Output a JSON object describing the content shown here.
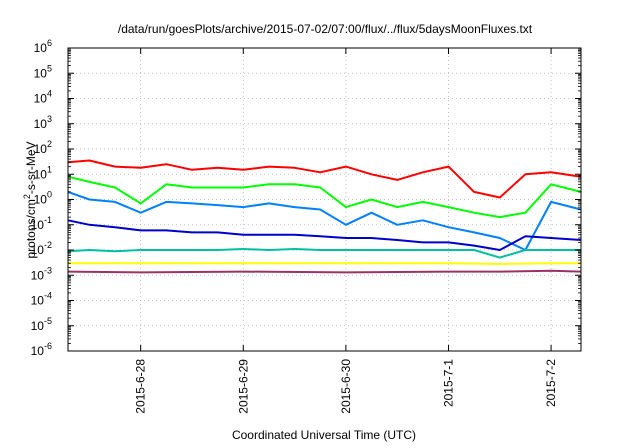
{
  "chart_data": {
    "type": "line",
    "title": "/data/run/goesPlots/archive/2015-07-02/07:00/flux/../flux/5daysMoonFluxes.txt",
    "xlabel": "Coordinated Universal Time (UTC)",
    "ylabel": "protons/cm²-s-sr-MeV",
    "ylabel_parts": {
      "a": "protons/cm",
      "sup": "2",
      "b": "-s-sr-MeV"
    },
    "y_scale": "log",
    "ylim": [
      1e-06,
      1000000
    ],
    "y_tick_exponents": [
      "-6",
      "-5",
      "-4",
      "-3",
      "-2",
      "-1",
      "0",
      "1",
      "2",
      "3",
      "4",
      "5",
      "6"
    ],
    "y_tick_base": "10",
    "xlim": [
      "2015-06-27 07:00",
      "2015-07-02 07:00"
    ],
    "x_ticks": [
      "2015-6-28",
      "2015-6-29",
      "2015-6-30",
      "2015-7-1",
      "2015-7-2"
    ],
    "grid": true,
    "series": [
      {
        "color": "#ff0000",
        "x": [
          "2015-06-27 07:00",
          "2015-06-27 12:00",
          "2015-06-27 18:00",
          "2015-06-28 00:00",
          "2015-06-28 06:00",
          "2015-06-28 12:00",
          "2015-06-28 18:00",
          "2015-06-29 00:00",
          "2015-06-29 06:00",
          "2015-06-29 12:00",
          "2015-06-29 18:00",
          "2015-06-30 00:00",
          "2015-06-30 06:00",
          "2015-06-30 12:00",
          "2015-06-30 18:00",
          "2015-07-01 00:00",
          "2015-07-01 06:00",
          "2015-07-01 12:00",
          "2015-07-01 18:00",
          "2015-07-02 00:00",
          "2015-07-02 07:00"
        ],
        "y": [
          30,
          35,
          20,
          18,
          25,
          15,
          18,
          15,
          20,
          18,
          12,
          20,
          10,
          6,
          12,
          20,
          2,
          1.2,
          10,
          12,
          8
        ]
      },
      {
        "color": "#00ff00",
        "x": [
          "2015-06-27 07:00",
          "2015-06-27 12:00",
          "2015-06-27 18:00",
          "2015-06-28 00:00",
          "2015-06-28 06:00",
          "2015-06-28 12:00",
          "2015-06-28 18:00",
          "2015-06-29 00:00",
          "2015-06-29 06:00",
          "2015-06-29 12:00",
          "2015-06-29 18:00",
          "2015-06-30 00:00",
          "2015-06-30 06:00",
          "2015-06-30 12:00",
          "2015-06-30 18:00",
          "2015-07-01 00:00",
          "2015-07-01 06:00",
          "2015-07-01 12:00",
          "2015-07-01 18:00",
          "2015-07-02 00:00",
          "2015-07-02 07:00"
        ],
        "y": [
          8,
          5,
          3,
          0.7,
          4,
          3,
          3,
          3,
          4,
          4,
          3,
          0.5,
          1,
          0.5,
          0.8,
          0.5,
          0.3,
          0.2,
          0.3,
          4,
          2
        ]
      },
      {
        "color": "#0080ff",
        "x": [
          "2015-06-27 07:00",
          "2015-06-27 12:00",
          "2015-06-27 18:00",
          "2015-06-28 00:00",
          "2015-06-28 06:00",
          "2015-06-28 12:00",
          "2015-06-28 18:00",
          "2015-06-29 00:00",
          "2015-06-29 06:00",
          "2015-06-29 12:00",
          "2015-06-29 18:00",
          "2015-06-30 00:00",
          "2015-06-30 06:00",
          "2015-06-30 12:00",
          "2015-06-30 18:00",
          "2015-07-01 00:00",
          "2015-07-01 06:00",
          "2015-07-01 12:00",
          "2015-07-01 18:00",
          "2015-07-02 00:00",
          "2015-07-02 07:00"
        ],
        "y": [
          2,
          1,
          0.8,
          0.3,
          0.8,
          0.7,
          0.6,
          0.5,
          0.7,
          0.5,
          0.4,
          0.1,
          0.3,
          0.1,
          0.15,
          0.08,
          0.05,
          0.03,
          0.01,
          0.8,
          0.4
        ]
      },
      {
        "color": "#0000cc",
        "x": [
          "2015-06-27 07:00",
          "2015-06-27 12:00",
          "2015-06-27 18:00",
          "2015-06-28 00:00",
          "2015-06-28 06:00",
          "2015-06-28 12:00",
          "2015-06-28 18:00",
          "2015-06-29 00:00",
          "2015-06-29 06:00",
          "2015-06-29 12:00",
          "2015-06-29 18:00",
          "2015-06-30 00:00",
          "2015-06-30 06:00",
          "2015-06-30 12:00",
          "2015-06-30 18:00",
          "2015-07-01 00:00",
          "2015-07-01 06:00",
          "2015-07-01 12:00",
          "2015-07-01 18:00",
          "2015-07-02 00:00",
          "2015-07-02 07:00"
        ],
        "y": [
          0.15,
          0.1,
          0.08,
          0.06,
          0.06,
          0.05,
          0.05,
          0.04,
          0.04,
          0.04,
          0.035,
          0.03,
          0.03,
          0.025,
          0.02,
          0.02,
          0.015,
          0.01,
          0.035,
          0.03,
          0.025
        ]
      },
      {
        "color": "#00c0a0",
        "x": [
          "2015-06-27 07:00",
          "2015-06-27 12:00",
          "2015-06-27 18:00",
          "2015-06-28 00:00",
          "2015-06-28 06:00",
          "2015-06-28 12:00",
          "2015-06-28 18:00",
          "2015-06-29 00:00",
          "2015-06-29 06:00",
          "2015-06-29 12:00",
          "2015-06-29 18:00",
          "2015-06-30 00:00",
          "2015-06-30 06:00",
          "2015-06-30 12:00",
          "2015-06-30 18:00",
          "2015-07-01 00:00",
          "2015-07-01 06:00",
          "2015-07-01 12:00",
          "2015-07-01 18:00",
          "2015-07-02 00:00",
          "2015-07-02 07:00"
        ],
        "y": [
          0.009,
          0.01,
          0.009,
          0.01,
          0.01,
          0.01,
          0.01,
          0.011,
          0.01,
          0.011,
          0.01,
          0.01,
          0.01,
          0.01,
          0.01,
          0.01,
          0.01,
          0.005,
          0.01,
          0.01,
          0.01
        ]
      },
      {
        "color": "#ffff00",
        "x": [
          "2015-06-27 07:00",
          "2015-06-28 00:00",
          "2015-06-29 00:00",
          "2015-06-30 00:00",
          "2015-07-01 00:00",
          "2015-07-01 12:00",
          "2015-07-02 00:00",
          "2015-07-02 07:00"
        ],
        "y": [
          0.003,
          0.003,
          0.003,
          0.003,
          0.003,
          0.0028,
          0.003,
          0.003
        ]
      },
      {
        "color": "#993366",
        "x": [
          "2015-06-27 07:00",
          "2015-06-28 00:00",
          "2015-06-29 00:00",
          "2015-06-30 00:00",
          "2015-07-01 00:00",
          "2015-07-01 12:00",
          "2015-07-02 00:00",
          "2015-07-02 07:00"
        ],
        "y": [
          0.0014,
          0.0013,
          0.0014,
          0.0013,
          0.0014,
          0.0014,
          0.0015,
          0.0014
        ]
      }
    ]
  }
}
